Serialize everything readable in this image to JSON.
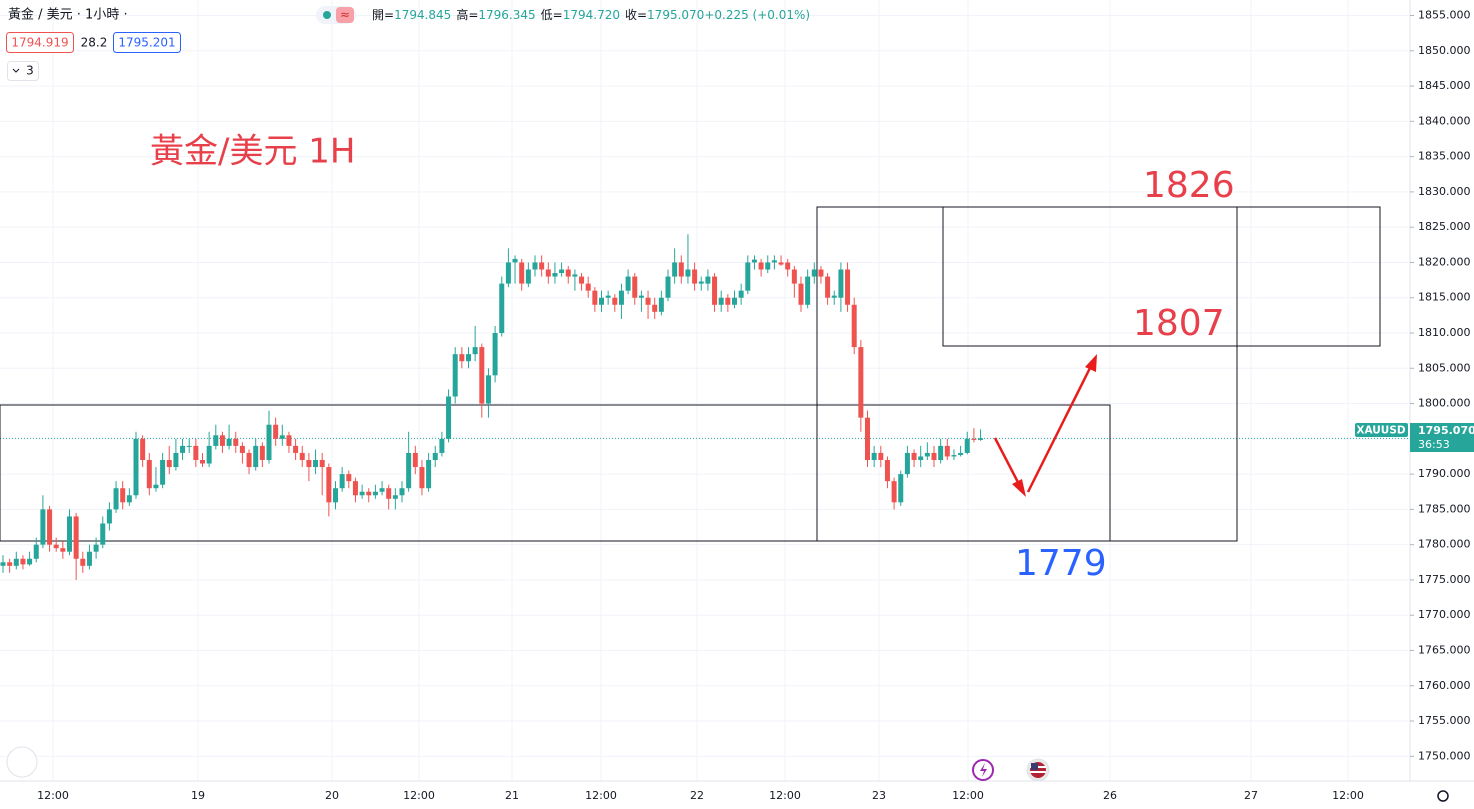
{
  "header": {
    "symbol": "黃金 / 美元 · 1小時 ·",
    "bid": "1794.919",
    "spread": "28.2",
    "ask": "1795.201",
    "indicators": "3",
    "toggle": "≈",
    "ohlc": [
      [
        "開=",
        "1794.845"
      ],
      [
        "高=",
        "1796.345"
      ],
      [
        "低=",
        "1794.720"
      ],
      [
        "收=",
        "1795.070"
      ],
      [
        "",
        "+0.225 (+0.01%)"
      ]
    ]
  },
  "annotations": {
    "title": "黃金/美元 1H",
    "level_high": "1826",
    "level_mid": "1807",
    "level_low": "1779"
  },
  "price_label": {
    "symbol": "XAUUSD",
    "price": "1795.070",
    "countdown": "36:53"
  },
  "chart_data": {
    "type": "candlestick",
    "up_color": "#26a69a",
    "down_color": "#ef5350",
    "last_price": 1795.07,
    "time_labels": [
      "12:00",
      "19",
      "20",
      "12:00",
      "21",
      "12:00",
      "22",
      "12:00",
      "23",
      "12:00",
      "26",
      "27",
      "12:00"
    ],
    "ylim": [
      1746.5,
      1857.2
    ],
    "yticks": [
      {
        "value": 1855,
        "label": "1855.000"
      },
      {
        "value": 1850,
        "label": "1850.000"
      },
      {
        "value": 1845,
        "label": "1845.000"
      },
      {
        "value": 1840,
        "label": "1840.000"
      },
      {
        "value": 1835,
        "label": "1835.000"
      },
      {
        "value": 1830,
        "label": "1830.000"
      },
      {
        "value": 1825,
        "label": "1825.000"
      },
      {
        "value": 1820,
        "label": "1820.000"
      },
      {
        "value": 1815,
        "label": "1815.000"
      },
      {
        "value": 1810,
        "label": "1810.000"
      },
      {
        "value": 1805,
        "label": "1805.000"
      },
      {
        "value": 1800,
        "label": "1800.000"
      },
      {
        "value": 1795,
        "label": "1795.000"
      },
      {
        "value": 1790,
        "label": "1790.000"
      },
      {
        "value": 1785,
        "label": "1785.000"
      },
      {
        "value": 1780,
        "label": "1780.000"
      },
      {
        "value": 1775,
        "label": "1775.000"
      },
      {
        "value": 1770,
        "label": "1770.000"
      },
      {
        "value": 1765,
        "label": "1765.000"
      },
      {
        "value": 1760,
        "label": "1760.000"
      },
      {
        "value": 1755,
        "label": "1755.000"
      },
      {
        "value": 1750,
        "label": "1750.000"
      }
    ],
    "ohlc": [
      [
        1777,
        1778.5,
        1776,
        1777.5
      ],
      [
        1777.5,
        1778,
        1776,
        1777
      ],
      [
        1777,
        1779,
        1776.5,
        1778
      ],
      [
        1778,
        1778.5,
        1776.5,
        1777.2
      ],
      [
        1777.2,
        1779,
        1777,
        1778
      ],
      [
        1778,
        1781,
        1777.5,
        1780
      ],
      [
        1780,
        1787,
        1779.5,
        1785
      ],
      [
        1785,
        1785.5,
        1779,
        1780
      ],
      [
        1780,
        1781,
        1779,
        1779.5
      ],
      [
        1779.5,
        1780.5,
        1778,
        1779
      ],
      [
        1779,
        1785,
        1778.5,
        1784
      ],
      [
        1784,
        1784.5,
        1775,
        1778
      ],
      [
        1778,
        1779,
        1776,
        1777
      ],
      [
        1777,
        1780,
        1776.5,
        1779
      ],
      [
        1779,
        1781,
        1778,
        1780
      ],
      [
        1780,
        1784,
        1779.5,
        1783
      ],
      [
        1783,
        1786,
        1782,
        1785
      ],
      [
        1785,
        1789,
        1784.5,
        1788
      ],
      [
        1788,
        1789,
        1785,
        1786
      ],
      [
        1786,
        1788,
        1785.5,
        1787
      ],
      [
        1787,
        1796,
        1786.5,
        1795
      ],
      [
        1795,
        1795.5,
        1791,
        1792
      ],
      [
        1792,
        1793,
        1787,
        1788
      ],
      [
        1788,
        1791,
        1787.5,
        1788.5
      ],
      [
        1788.5,
        1793,
        1788,
        1792
      ],
      [
        1792,
        1794,
        1790,
        1791
      ],
      [
        1791,
        1795,
        1790.5,
        1793
      ],
      [
        1793,
        1795,
        1792,
        1794
      ],
      [
        1794,
        1795,
        1793,
        1794
      ],
      [
        1794,
        1795,
        1791,
        1792
      ],
      [
        1792,
        1793,
        1791,
        1791.5
      ],
      [
        1791.5,
        1796,
        1791,
        1794
      ],
      [
        1794,
        1797,
        1793.5,
        1795.5
      ],
      [
        1795.5,
        1796,
        1793,
        1794
      ],
      [
        1794,
        1797,
        1793.5,
        1795
      ],
      [
        1795,
        1796,
        1793,
        1794
      ],
      [
        1794,
        1794.5,
        1791.5,
        1793
      ],
      [
        1793,
        1793.5,
        1790,
        1791
      ],
      [
        1791,
        1795,
        1790.5,
        1794
      ],
      [
        1794,
        1794.5,
        1791,
        1792
      ],
      [
        1792,
        1799,
        1791.5,
        1797
      ],
      [
        1797,
        1798,
        1794,
        1795
      ],
      [
        1795,
        1797,
        1794,
        1795.5
      ],
      [
        1795.5,
        1796,
        1793,
        1794
      ],
      [
        1794,
        1795,
        1792,
        1793
      ],
      [
        1793,
        1794,
        1791,
        1792
      ],
      [
        1792,
        1793,
        1789,
        1791
      ],
      [
        1791,
        1793.5,
        1790,
        1792
      ],
      [
        1792,
        1793,
        1787,
        1791
      ],
      [
        1791,
        1791.5,
        1784,
        1786
      ],
      [
        1786,
        1789,
        1785,
        1788
      ],
      [
        1788,
        1791,
        1787.5,
        1790
      ],
      [
        1790,
        1790.5,
        1788,
        1789
      ],
      [
        1789,
        1789.5,
        1786,
        1787
      ],
      [
        1787,
        1788.5,
        1786.5,
        1787.5
      ],
      [
        1787.5,
        1788,
        1786,
        1787
      ],
      [
        1787,
        1788.5,
        1786.5,
        1787.5
      ],
      [
        1787.5,
        1789,
        1787,
        1788
      ],
      [
        1788,
        1788.5,
        1785,
        1786.5
      ],
      [
        1786.5,
        1788,
        1785,
        1787
      ],
      [
        1787,
        1789,
        1786,
        1788
      ],
      [
        1788,
        1796,
        1787.5,
        1793
      ],
      [
        1793,
        1794,
        1790,
        1791
      ],
      [
        1791,
        1792,
        1787,
        1788
      ],
      [
        1788,
        1793,
        1787.5,
        1792
      ],
      [
        1792,
        1794,
        1791,
        1793
      ],
      [
        1793,
        1796,
        1792.5,
        1795
      ],
      [
        1795,
        1802,
        1794.5,
        1801
      ],
      [
        1801,
        1808,
        1800,
        1807
      ],
      [
        1807,
        1808,
        1805,
        1806
      ],
      [
        1806,
        1808,
        1805,
        1807
      ],
      [
        1807,
        1811,
        1806,
        1808
      ],
      [
        1808,
        1808.5,
        1798,
        1800
      ],
      [
        1800,
        1805,
        1798,
        1804
      ],
      [
        1804,
        1811,
        1803,
        1810
      ],
      [
        1810,
        1818,
        1809.5,
        1817
      ],
      [
        1817,
        1822,
        1816.5,
        1820
      ],
      [
        1820,
        1821,
        1817,
        1820.5
      ],
      [
        1820,
        1820.5,
        1816,
        1817
      ],
      [
        1817,
        1820,
        1816.5,
        1819
      ],
      [
        1819,
        1821,
        1818,
        1820
      ],
      [
        1820,
        1821,
        1818,
        1819
      ],
      [
        1819,
        1820,
        1817,
        1818
      ],
      [
        1818,
        1820,
        1817,
        1818.5
      ],
      [
        1818.5,
        1820,
        1818,
        1819
      ],
      [
        1819,
        1819.5,
        1817,
        1818
      ],
      [
        1818,
        1819,
        1816,
        1818.3
      ],
      [
        1818,
        1818.5,
        1816,
        1817
      ],
      [
        1817,
        1818,
        1815,
        1816
      ],
      [
        1816,
        1816.5,
        1813,
        1814
      ],
      [
        1814,
        1816,
        1813,
        1815
      ],
      [
        1815,
        1816,
        1814,
        1815.3
      ],
      [
        1815,
        1815.5,
        1813,
        1814
      ],
      [
        1814,
        1817,
        1812,
        1816
      ],
      [
        1816,
        1819,
        1815.5,
        1818
      ],
      [
        1818,
        1818.5,
        1814,
        1815
      ],
      [
        1815,
        1816,
        1813,
        1815.3
      ],
      [
        1815,
        1816,
        1812,
        1814
      ],
      [
        1814,
        1815,
        1812,
        1813
      ],
      [
        1813,
        1816,
        1812.5,
        1815
      ],
      [
        1815,
        1819,
        1814.5,
        1818
      ],
      [
        1818,
        1822,
        1817,
        1820
      ],
      [
        1820,
        1821,
        1817,
        1818
      ],
      [
        1818,
        1824,
        1817,
        1819
      ],
      [
        1819,
        1820,
        1816,
        1817
      ],
      [
        1817,
        1818,
        1816,
        1817.3
      ],
      [
        1817,
        1819,
        1816,
        1818
      ],
      [
        1818,
        1818.5,
        1813,
        1814
      ],
      [
        1814,
        1816,
        1813,
        1815
      ],
      [
        1815,
        1815.5,
        1813,
        1814
      ],
      [
        1814,
        1816,
        1813.5,
        1815
      ],
      [
        1815,
        1817,
        1814,
        1816
      ],
      [
        1816,
        1821,
        1815.5,
        1820
      ],
      [
        1820,
        1821,
        1819,
        1820.4
      ],
      [
        1820,
        1820.5,
        1818,
        1819
      ],
      [
        1819,
        1821,
        1818.5,
        1820
      ],
      [
        1820,
        1821,
        1819,
        1820.3
      ],
      [
        1820,
        1821,
        1819.5,
        1819.7
      ],
      [
        1820,
        1820.5,
        1818,
        1819
      ],
      [
        1819,
        1819.5,
        1815,
        1817
      ],
      [
        1817,
        1818,
        1813,
        1814
      ],
      [
        1814,
        1819,
        1813.5,
        1818
      ],
      [
        1818,
        1820,
        1817,
        1819
      ],
      [
        1819,
        1819.5,
        1817,
        1818
      ],
      [
        1818,
        1818.5,
        1814,
        1815
      ],
      [
        1815,
        1816,
        1814,
        1815.3
      ],
      [
        1815,
        1820,
        1813,
        1819
      ],
      [
        1819,
        1820,
        1813,
        1814
      ],
      [
        1814,
        1815,
        1807,
        1808
      ],
      [
        1808,
        1809,
        1796,
        1798
      ],
      [
        1798,
        1799,
        1791,
        1792
      ],
      [
        1792,
        1794,
        1791,
        1793
      ],
      [
        1793,
        1794,
        1791,
        1792
      ],
      [
        1792,
        1792.5,
        1788,
        1789
      ],
      [
        1789,
        1789.5,
        1785,
        1786
      ],
      [
        1786,
        1790.5,
        1785.5,
        1790
      ],
      [
        1790,
        1794,
        1789.5,
        1793
      ],
      [
        1793,
        1793.5,
        1791,
        1792
      ],
      [
        1792,
        1794,
        1791,
        1792.5
      ],
      [
        1792.5,
        1794.5,
        1792,
        1793
      ],
      [
        1793,
        1794,
        1791,
        1792
      ],
      [
        1792,
        1795,
        1791.5,
        1794
      ],
      [
        1794,
        1795,
        1792,
        1792.5
      ],
      [
        1792.5,
        1793.5,
        1792,
        1792.7
      ],
      [
        1792.7,
        1794,
        1792.5,
        1793
      ],
      [
        1793,
        1796,
        1792.8,
        1795
      ],
      [
        1795,
        1796.5,
        1794.5,
        1794.845
      ],
      [
        1794.845,
        1796.345,
        1794.72,
        1795.07
      ]
    ]
  }
}
